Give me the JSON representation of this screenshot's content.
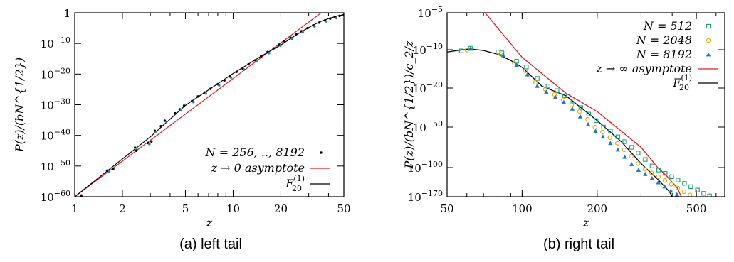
{
  "chart_data": [
    {
      "type": "scatter",
      "caption": "(a) left tail",
      "xlabel": "z",
      "ylabel": "P(z)/(bN^{1/2})",
      "xscale": "log",
      "yscale": "log",
      "xlim": [
        1,
        50
      ],
      "ylim_exp": [
        -60,
        0
      ],
      "x_ticks": [
        1,
        2,
        5,
        10,
        20,
        50
      ],
      "x_tick_labels": [
        "1",
        "2",
        "5",
        "10",
        "20",
        "50"
      ],
      "y_tick_exps": [
        -60,
        -50,
        -40,
        -30,
        -20,
        -10,
        0
      ],
      "y_tick_labels": [
        "10",
        "10",
        "10",
        "10",
        "10",
        "10",
        "1"
      ],
      "y_tick_sups": [
        "−60",
        "−50",
        "−40",
        "−30",
        "−20",
        "−10",
        ""
      ],
      "legend_position": "bottom-right",
      "legend": [
        {
          "label": "N = 256, .., 8192",
          "marker": "dot",
          "color": "#000000"
        },
        {
          "label": "z → 0 asymptote",
          "marker": "line",
          "color": "#e41a1c"
        },
        {
          "label": "F",
          "sub": "20",
          "sup": "(1)",
          "marker": "line",
          "color": "#000000"
        }
      ],
      "series": [
        {
          "name": "N = 256, .., 8192",
          "color": "#000000",
          "points": [
            [
              1.0,
              -60
            ],
            [
              1.1,
              -59.6
            ],
            [
              1.6,
              -51.5
            ],
            [
              1.75,
              -51
            ],
            [
              2.4,
              -44
            ],
            [
              2.45,
              -45
            ],
            [
              2.9,
              -42.5
            ],
            [
              3.05,
              -42
            ],
            [
              3.2,
              -38.5
            ],
            [
              3.5,
              -37
            ],
            [
              3.7,
              -35.2
            ],
            [
              4.3,
              -32.8
            ],
            [
              4.6,
              -31.5
            ],
            [
              4.9,
              -30.3
            ],
            [
              5.5,
              -28.8
            ],
            [
              6.0,
              -27.3
            ],
            [
              6.6,
              -26
            ],
            [
              7.2,
              -24.8
            ],
            [
              8.0,
              -23.3
            ],
            [
              8.8,
              -22.1
            ],
            [
              9.5,
              -20.8
            ],
            [
              10.5,
              -19.3
            ],
            [
              11.5,
              -18.2
            ],
            [
              12.5,
              -16.8
            ],
            [
              13.8,
              -15.5
            ],
            [
              15,
              -14.2
            ],
            [
              16.5,
              -12.8
            ],
            [
              18,
              -11.6
            ],
            [
              19.5,
              -10.4
            ],
            [
              21,
              -9.3
            ],
            [
              23,
              -8.1
            ],
            [
              25,
              -7.0
            ],
            [
              27,
              -6.0
            ],
            [
              29.5,
              -5.0
            ],
            [
              32,
              -4.1
            ],
            [
              35,
              -3.2
            ],
            [
              38,
              -2.5
            ],
            [
              41,
              -1.9
            ],
            [
              44,
              -1.4
            ],
            [
              47,
              -1.0
            ],
            [
              50,
              -0.7
            ]
          ]
        }
      ],
      "lines": [
        {
          "name": "z → 0 asymptote",
          "color": "#e41a1c",
          "points": [
            [
              1,
              -60
            ],
            [
              36,
              0
            ]
          ]
        },
        {
          "name": "F20(1)",
          "color": "#000000",
          "points": [
            [
              1,
              -60
            ],
            [
              3,
              -40.5
            ],
            [
              5,
              -30.2
            ],
            [
              10,
              -19.8
            ],
            [
              15,
              -14.2
            ],
            [
              20,
              -10.5
            ],
            [
              25,
              -7.2
            ],
            [
              30,
              -4.8
            ],
            [
              35,
              -3.0
            ],
            [
              40,
              -1.9
            ],
            [
              45,
              -1.1
            ],
            [
              50,
              -0.6
            ]
          ]
        }
      ]
    },
    {
      "type": "scatter",
      "caption": "(b) right tail",
      "xlabel": "z",
      "ylabel": "P(z)/(bN^{1/2})/c_2/z",
      "xscale": "log",
      "yscale": "piecewise-log",
      "xlim": [
        50,
        650
      ],
      "x_ticks": [
        50,
        100,
        200,
        500
      ],
      "x_tick_labels": [
        "50",
        "100",
        "200",
        "500"
      ],
      "y_tick_exps": [
        -5,
        -10,
        -20,
        -50,
        -100,
        -170
      ],
      "y_tick_labels": [
        "10",
        "10",
        "10",
        "10",
        "10",
        "10"
      ],
      "y_tick_sups": [
        "−5",
        "−10",
        "−20",
        "−50",
        "−100",
        "−170"
      ],
      "legend_position": "top-right",
      "legend": [
        {
          "label": "N = 512",
          "marker": "square",
          "color": "#1b9e77"
        },
        {
          "label": "N = 2048",
          "marker": "circle",
          "color": "#e6a817"
        },
        {
          "label": "N = 8192",
          "marker": "triangle",
          "color": "#1f78b4"
        },
        {
          "label": "z → ∞ asymptote",
          "marker": "line",
          "color": "#e41a1c"
        },
        {
          "label": "F",
          "sub": "20",
          "sup": "(1)",
          "marker": "line",
          "color": "#000000"
        }
      ],
      "series": [
        {
          "name": "N = 512",
          "color": "#1b9e77",
          "marker": "square",
          "points": [
            [
              57,
              -10.3
            ],
            [
              62,
              -9.8
            ],
            [
              80,
              -10.6
            ],
            [
              83,
              -10.8
            ],
            [
              95,
              -13
            ],
            [
              104,
              -14.5
            ],
            [
              115,
              -17.5
            ],
            [
              127,
              -19.5
            ],
            [
              138,
              -22
            ],
            [
              148,
              -26
            ],
            [
              160,
              -30
            ],
            [
              172,
              -35
            ],
            [
              185,
              -40
            ],
            [
              198,
              -45
            ],
            [
              212,
              -50
            ],
            [
              226,
              -55
            ],
            [
              242,
              -62
            ],
            [
              258,
              -68
            ],
            [
              275,
              -75
            ],
            [
              292,
              -82
            ],
            [
              312,
              -90
            ],
            [
              332,
              -98
            ],
            [
              353,
              -106
            ],
            [
              375,
              -114
            ],
            [
              398,
              -122
            ],
            [
              422,
              -130
            ],
            [
              448,
              -138
            ],
            [
              475,
              -146
            ],
            [
              505,
              -154
            ],
            [
              535,
              -162
            ],
            [
              565,
              -168
            ],
            [
              595,
              -172
            ]
          ]
        },
        {
          "name": "N = 2048",
          "color": "#e6a817",
          "marker": "circle",
          "points": [
            [
              60,
              -10.1
            ],
            [
              82,
              -11.2
            ],
            [
              93,
              -13.5
            ],
            [
              103,
              -15.5
            ],
            [
              113,
              -18.5
            ],
            [
              124,
              -21
            ],
            [
              135,
              -25
            ],
            [
              146,
              -29
            ],
            [
              158,
              -33
            ],
            [
              170,
              -38
            ],
            [
              183,
              -44
            ],
            [
              196,
              -50
            ],
            [
              210,
              -56
            ],
            [
              225,
              -63
            ],
            [
              241,
              -70
            ],
            [
              257,
              -78
            ],
            [
              274,
              -86
            ],
            [
              292,
              -95
            ],
            [
              311,
              -104
            ],
            [
              331,
              -113
            ],
            [
              352,
              -122
            ],
            [
              374,
              -131
            ],
            [
              397,
              -140
            ],
            [
              421,
              -149
            ],
            [
              446,
              -158
            ],
            [
              472,
              -166
            ],
            [
              500,
              -172
            ]
          ]
        },
        {
          "name": "N = 8192",
          "color": "#1f78b4",
          "marker": "triangle",
          "points": [
            [
              62,
              -9.9
            ],
            [
              84,
              -11.5
            ],
            [
              95,
              -14
            ],
            [
              105,
              -16.5
            ],
            [
              115,
              -19.5
            ],
            [
              125,
              -23
            ],
            [
              136,
              -27
            ],
            [
              147,
              -31
            ],
            [
              159,
              -36
            ],
            [
              171,
              -42
            ],
            [
              184,
              -48
            ],
            [
              197,
              -55
            ],
            [
              211,
              -62
            ],
            [
              226,
              -70
            ],
            [
              242,
              -78
            ],
            [
              258,
              -87
            ],
            [
              275,
              -96
            ],
            [
              293,
              -106
            ],
            [
              312,
              -116
            ],
            [
              332,
              -126
            ],
            [
              352,
              -136
            ],
            [
              373,
              -146
            ],
            [
              395,
              -156
            ],
            [
              418,
              -165
            ],
            [
              440,
              -172
            ]
          ]
        }
      ],
      "lines": [
        {
          "name": "z → ∞ asymptote",
          "color": "#e41a1c",
          "points": [
            [
              71,
              -5
            ],
            [
              100,
              -12
            ],
            [
              150,
              -24
            ],
            [
              200,
              -38
            ],
            [
              250,
              -55
            ],
            [
              300,
              -75
            ],
            [
              350,
              -100
            ],
            [
              380,
              -120
            ],
            [
              400,
              -135
            ],
            [
              420,
              -150
            ],
            [
              440,
              -172
            ]
          ]
        },
        {
          "name": "F20(1)",
          "color": "#000000",
          "points": [
            [
              50,
              -10.6
            ],
            [
              55,
              -10.2
            ],
            [
              62,
              -9.9
            ],
            [
              70,
              -10.2
            ],
            [
              80,
              -11.2
            ],
            [
              90,
              -12.8
            ],
            [
              100,
              -14.6
            ],
            [
              120,
              -19.5
            ],
            [
              150,
              -26
            ],
            [
              180,
              -38
            ],
            [
              200,
              -45
            ],
            [
              250,
              -68
            ],
            [
              300,
              -95
            ],
            [
              350,
              -128
            ],
            [
              390,
              -158
            ],
            [
              405,
              -172
            ]
          ]
        }
      ]
    }
  ]
}
